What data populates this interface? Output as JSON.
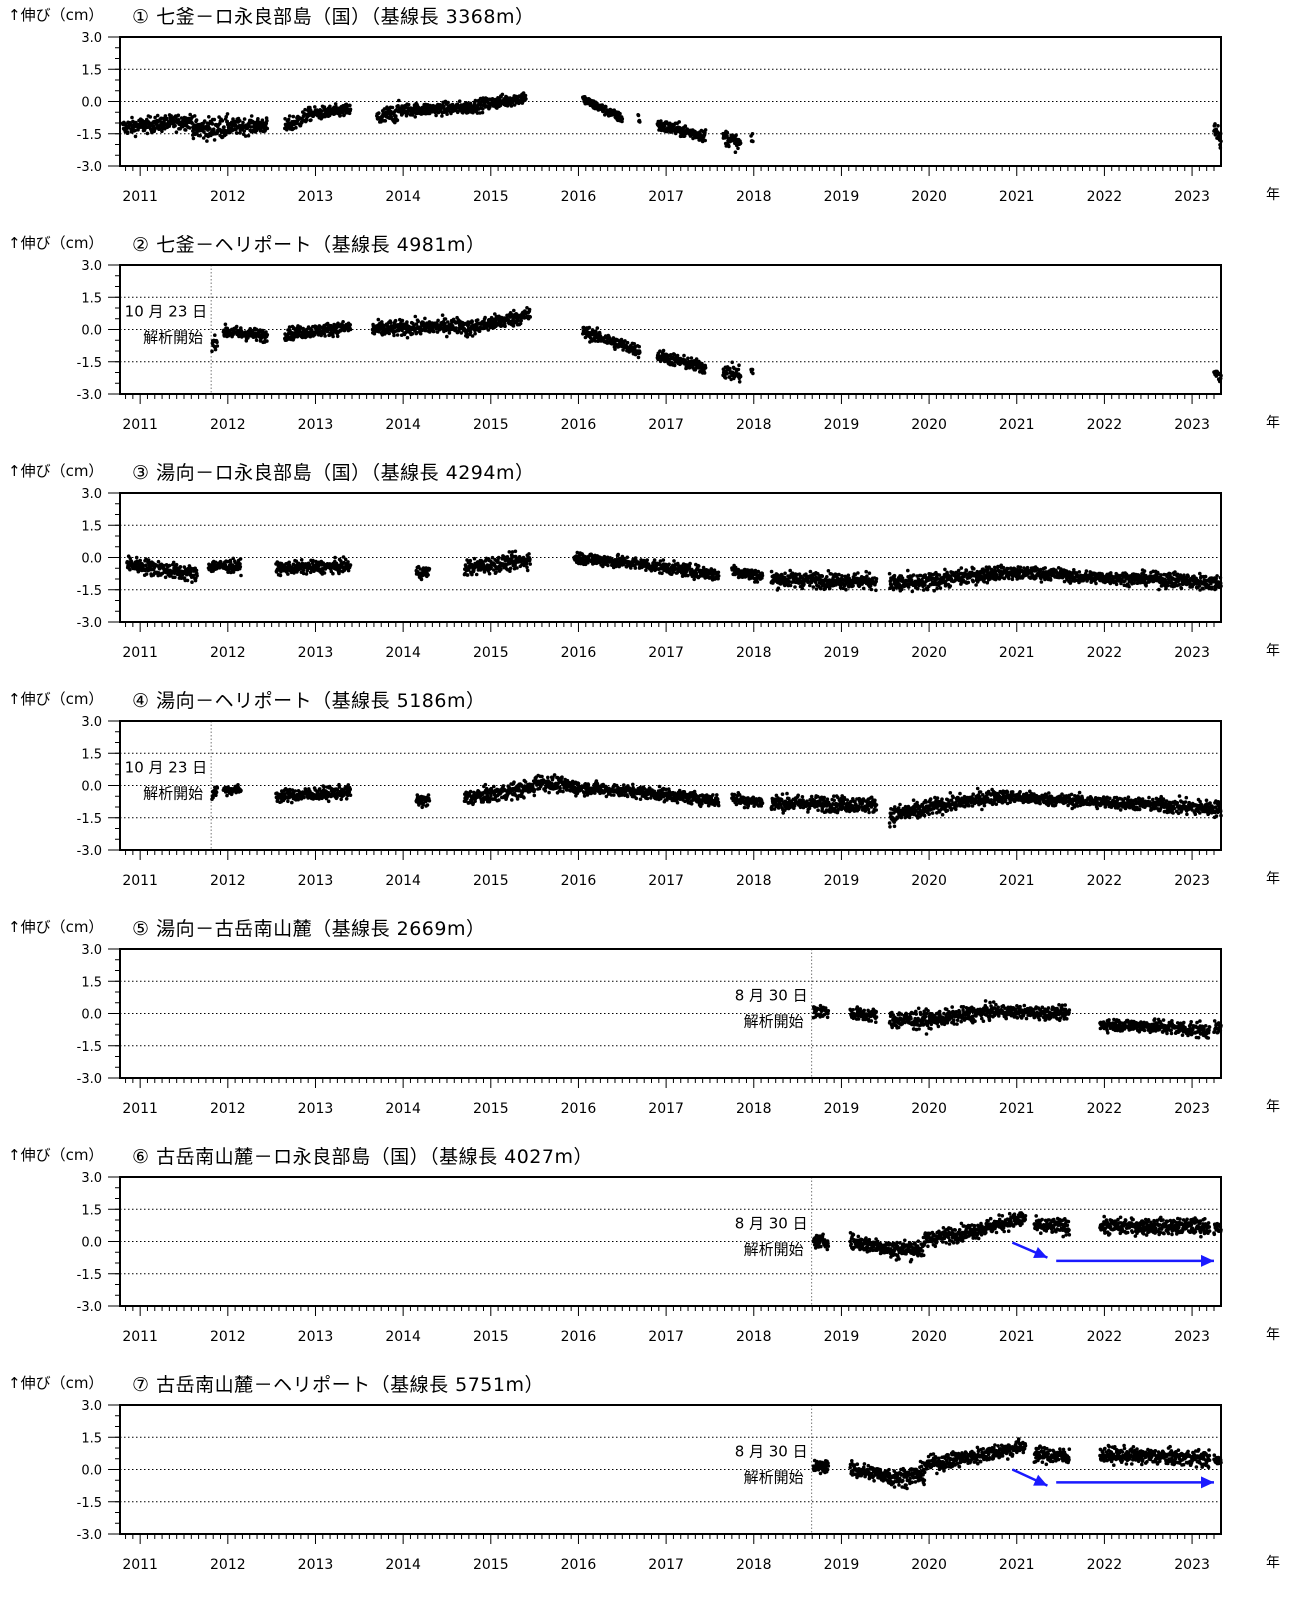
{
  "chart_data": [
    {
      "type": "scatter",
      "title": "① 七釜－ロ永良部島（国）（基線長 3368m）",
      "ylabel": "↑伸び（cm）",
      "year_unit": "年",
      "xlim": [
        2010.77,
        2023.33
      ],
      "ylim": [
        -3.0,
        3.0
      ],
      "yticks": [
        "3.0",
        "1.5",
        "0.0",
        "-1.5",
        "-3.0"
      ],
      "xticks": [
        "2011",
        "2012",
        "2013",
        "2014",
        "2015",
        "2016",
        "2017",
        "2018",
        "2019",
        "2020",
        "2021",
        "2022",
        "2023"
      ],
      "grid": "dotted horizontal",
      "series": [
        {
          "segments": [
            [
              2010.8,
              2011.6,
              -1.2,
              -0.9,
              0.25
            ],
            [
              2011.6,
              2012.0,
              -1.3,
              -1.2,
              0.35
            ],
            [
              2012.0,
              2012.45,
              -1.2,
              -1.1,
              0.25
            ],
            [
              2012.65,
              2012.9,
              -1.2,
              -0.7,
              0.25
            ],
            [
              2012.9,
              2013.4,
              -0.6,
              -0.4,
              0.2
            ],
            [
              2013.7,
              2013.95,
              -0.8,
              -0.5,
              0.3
            ],
            [
              2013.95,
              2014.7,
              -0.4,
              -0.3,
              0.2
            ],
            [
              2014.7,
              2015.4,
              -0.3,
              0.2,
              0.2
            ],
            [
              2016.05,
              2016.5,
              0.1,
              -0.8,
              0.15
            ],
            [
              2016.68,
              2016.7,
              -0.6,
              -1.0,
              0.2
            ],
            [
              2016.9,
              2017.45,
              -1.1,
              -1.6,
              0.2
            ],
            [
              2017.65,
              2017.85,
              -1.6,
              -2.0,
              0.25
            ],
            [
              2017.97,
              2017.99,
              -1.7,
              -2.0,
              0.2
            ],
            [
              2023.25,
              2023.33,
              -1.2,
              -1.8,
              0.3
            ]
          ]
        }
      ]
    },
    {
      "type": "scatter",
      "title": "② 七釜－ヘリポート（基線長 4981m）",
      "ylabel": "↑伸び（cm）",
      "year_unit": "年",
      "xlim": [
        2010.77,
        2023.33
      ],
      "ylim": [
        -3.0,
        3.0
      ],
      "yticks": [
        "3.0",
        "1.5",
        "0.0",
        "-1.5",
        "-3.0"
      ],
      "xticks": [
        "2011",
        "2012",
        "2013",
        "2014",
        "2015",
        "2016",
        "2017",
        "2018",
        "2019",
        "2020",
        "2021",
        "2022",
        "2023"
      ],
      "grid": "dotted horizontal",
      "start_marker": {
        "x": 2011.81,
        "label1": "10 月 23 日",
        "label2": "解析開始"
      },
      "series": [
        {
          "segments": [
            [
              2011.82,
              2011.88,
              -0.7,
              -0.5,
              0.2
            ],
            [
              2011.95,
              2012.45,
              -0.1,
              -0.3,
              0.2
            ],
            [
              2012.65,
              2013.4,
              -0.2,
              0.1,
              0.2
            ],
            [
              2013.65,
              2014.7,
              0.0,
              0.2,
              0.25
            ],
            [
              2014.7,
              2015.45,
              0.0,
              0.7,
              0.25
            ],
            [
              2016.05,
              2016.7,
              -0.1,
              -1.0,
              0.2
            ],
            [
              2016.9,
              2017.45,
              -1.2,
              -1.8,
              0.2
            ],
            [
              2017.65,
              2017.85,
              -1.9,
              -2.1,
              0.25
            ],
            [
              2017.97,
              2017.99,
              -1.8,
              -2.1,
              0.2
            ],
            [
              2023.25,
              2023.33,
              -2.0,
              -2.2,
              0.2
            ]
          ]
        }
      ]
    },
    {
      "type": "scatter",
      "title": "③ 湯向－ロ永良部島（国）（基線長 4294m）",
      "ylabel": "↑伸び（cm）",
      "year_unit": "年",
      "xlim": [
        2010.77,
        2023.33
      ],
      "ylim": [
        -3.0,
        3.0
      ],
      "yticks": [
        "3.0",
        "1.5",
        "0.0",
        "-1.5",
        "-3.0"
      ],
      "xticks": [
        "2011",
        "2012",
        "2013",
        "2014",
        "2015",
        "2016",
        "2017",
        "2018",
        "2019",
        "2020",
        "2021",
        "2022",
        "2023"
      ],
      "grid": "dotted horizontal",
      "series": [
        {
          "segments": [
            [
              2010.85,
              2011.65,
              -0.3,
              -0.8,
              0.25
            ],
            [
              2011.78,
              2012.15,
              -0.4,
              -0.4,
              0.2
            ],
            [
              2012.55,
              2013.4,
              -0.5,
              -0.4,
              0.2
            ],
            [
              2014.15,
              2014.3,
              -0.7,
              -0.7,
              0.2
            ],
            [
              2014.7,
              2015.45,
              -0.5,
              -0.1,
              0.25
            ],
            [
              2015.95,
              2016.7,
              0.0,
              -0.3,
              0.2
            ],
            [
              2016.7,
              2017.6,
              -0.3,
              -0.8,
              0.2
            ],
            [
              2017.75,
              2018.1,
              -0.6,
              -0.9,
              0.2
            ],
            [
              2018.2,
              2019.4,
              -1.0,
              -1.1,
              0.25
            ],
            [
              2019.55,
              2020.0,
              -1.2,
              -1.2,
              0.3
            ],
            [
              2020.0,
              2020.8,
              -1.1,
              -0.7,
              0.25
            ],
            [
              2020.8,
              2021.6,
              -0.7,
              -0.8,
              0.2
            ],
            [
              2021.6,
              2022.6,
              -0.9,
              -1.0,
              0.2
            ],
            [
              2022.6,
              2023.33,
              -1.0,
              -1.2,
              0.25
            ]
          ]
        }
      ]
    },
    {
      "type": "scatter",
      "title": "④ 湯向－ヘリポート（基線長 5186m）",
      "ylabel": "↑伸び（cm）",
      "year_unit": "年",
      "xlim": [
        2010.77,
        2023.33
      ],
      "ylim": [
        -3.0,
        3.0
      ],
      "yticks": [
        "3.0",
        "1.5",
        "0.0",
        "-1.5",
        "-3.0"
      ],
      "xticks": [
        "2011",
        "2012",
        "2013",
        "2014",
        "2015",
        "2016",
        "2017",
        "2018",
        "2019",
        "2020",
        "2021",
        "2022",
        "2023"
      ],
      "grid": "dotted horizontal",
      "start_marker": {
        "x": 2011.81,
        "label1": "10 月 23 日",
        "label2": "解析開始"
      },
      "series": [
        {
          "segments": [
            [
              2011.82,
              2011.88,
              -0.4,
              -0.2,
              0.2
            ],
            [
              2011.95,
              2012.15,
              -0.2,
              -0.2,
              0.15
            ],
            [
              2012.55,
              2013.4,
              -0.5,
              -0.3,
              0.2
            ],
            [
              2014.15,
              2014.3,
              -0.7,
              -0.7,
              0.2
            ],
            [
              2014.7,
              2015.5,
              -0.6,
              -0.1,
              0.25
            ],
            [
              2015.5,
              2016.0,
              0.2,
              -0.1,
              0.25
            ],
            [
              2016.0,
              2016.7,
              -0.1,
              -0.3,
              0.2
            ],
            [
              2016.7,
              2017.6,
              -0.3,
              -0.7,
              0.2
            ],
            [
              2017.75,
              2018.1,
              -0.6,
              -0.8,
              0.2
            ],
            [
              2018.2,
              2019.4,
              -0.8,
              -0.9,
              0.25
            ],
            [
              2019.55,
              2020.0,
              -1.4,
              -1.1,
              0.3
            ],
            [
              2020.0,
              2020.8,
              -1.0,
              -0.5,
              0.25
            ],
            [
              2020.8,
              2021.6,
              -0.5,
              -0.7,
              0.2
            ],
            [
              2021.6,
              2022.6,
              -0.7,
              -0.9,
              0.2
            ],
            [
              2022.6,
              2023.33,
              -0.9,
              -1.1,
              0.25
            ]
          ]
        }
      ]
    },
    {
      "type": "scatter",
      "title": "⑤ 湯向－古岳南山麓（基線長 2669m）",
      "ylabel": "↑伸び（cm）",
      "year_unit": "年",
      "xlim": [
        2010.77,
        2023.33
      ],
      "ylim": [
        -3.0,
        3.0
      ],
      "yticks": [
        "3.0",
        "1.5",
        "0.0",
        "-1.5",
        "-3.0"
      ],
      "xticks": [
        "2011",
        "2012",
        "2013",
        "2014",
        "2015",
        "2016",
        "2017",
        "2018",
        "2019",
        "2020",
        "2021",
        "2022",
        "2023"
      ],
      "grid": "dotted horizontal",
      "start_marker": {
        "x": 2018.66,
        "label1": "8 月 30 日",
        "label2": "解析開始"
      },
      "series": [
        {
          "segments": [
            [
              2018.68,
              2018.85,
              0.1,
              0.1,
              0.2
            ],
            [
              2019.1,
              2019.4,
              0.0,
              -0.1,
              0.2
            ],
            [
              2019.55,
              2020.0,
              -0.3,
              -0.3,
              0.3
            ],
            [
              2020.0,
              2020.7,
              -0.3,
              0.1,
              0.25
            ],
            [
              2020.7,
              2021.6,
              0.1,
              0.0,
              0.2
            ],
            [
              2021.95,
              2022.6,
              -0.5,
              -0.6,
              0.2
            ],
            [
              2022.6,
              2023.2,
              -0.6,
              -0.8,
              0.25
            ],
            [
              2023.25,
              2023.33,
              -0.7,
              -0.7,
              0.2
            ]
          ]
        }
      ]
    },
    {
      "type": "scatter",
      "title": "⑥ 古岳南山麓－ロ永良部島（国）（基線長 4027m）",
      "ylabel": "↑伸び（cm）",
      "year_unit": "年",
      "xlim": [
        2010.77,
        2023.33
      ],
      "ylim": [
        -3.0,
        3.0
      ],
      "yticks": [
        "3.0",
        "1.5",
        "0.0",
        "-1.5",
        "-3.0"
      ],
      "xticks": [
        "2011",
        "2012",
        "2013",
        "2014",
        "2015",
        "2016",
        "2017",
        "2018",
        "2019",
        "2020",
        "2021",
        "2022",
        "2023"
      ],
      "grid": "dotted horizontal",
      "start_marker": {
        "x": 2018.66,
        "label1": "8 月 30 日",
        "label2": "解析開始"
      },
      "arrows": [
        {
          "x1": 2020.95,
          "y1": -0.05,
          "x2": 2021.35,
          "y2": -0.75
        },
        {
          "x1": 2021.45,
          "y1": -0.9,
          "x2": 2023.25,
          "y2": -0.9
        }
      ],
      "series": [
        {
          "segments": [
            [
              2018.68,
              2018.85,
              0.0,
              0.0,
              0.2
            ],
            [
              2019.1,
              2019.55,
              0.0,
              -0.3,
              0.25
            ],
            [
              2019.55,
              2019.95,
              -0.4,
              -0.3,
              0.3
            ],
            [
              2019.95,
              2020.5,
              0.1,
              0.5,
              0.25
            ],
            [
              2020.5,
              2021.1,
              0.5,
              1.1,
              0.25
            ],
            [
              2021.2,
              2021.6,
              0.7,
              0.7,
              0.25
            ],
            [
              2021.95,
              2023.2,
              0.7,
              0.7,
              0.25
            ],
            [
              2023.25,
              2023.33,
              0.6,
              0.6,
              0.2
            ]
          ]
        }
      ]
    },
    {
      "type": "scatter",
      "title": "⑦ 古岳南山麓－ヘリポート（基線長 5751m）",
      "ylabel": "↑伸び（cm）",
      "year_unit": "年",
      "xlim": [
        2010.77,
        2023.33
      ],
      "ylim": [
        -3.0,
        3.0
      ],
      "yticks": [
        "3.0",
        "1.5",
        "0.0",
        "-1.5",
        "-3.0"
      ],
      "xticks": [
        "2011",
        "2012",
        "2013",
        "2014",
        "2015",
        "2016",
        "2017",
        "2018",
        "2019",
        "2020",
        "2021",
        "2022",
        "2023"
      ],
      "grid": "dotted horizontal",
      "start_marker": {
        "x": 2018.66,
        "label1": "8 月 30 日",
        "label2": "解析開始"
      },
      "arrows": [
        {
          "x1": 2020.95,
          "y1": 0.0,
          "x2": 2021.35,
          "y2": -0.75
        },
        {
          "x1": 2021.45,
          "y1": -0.6,
          "x2": 2023.25,
          "y2": -0.6
        }
      ],
      "series": [
        {
          "segments": [
            [
              2018.68,
              2018.85,
              0.1,
              0.2,
              0.2
            ],
            [
              2019.1,
              2019.55,
              0.0,
              -0.3,
              0.25
            ],
            [
              2019.55,
              2019.95,
              -0.4,
              -0.2,
              0.3
            ],
            [
              2019.95,
              2020.5,
              0.2,
              0.6,
              0.25
            ],
            [
              2020.5,
              2021.1,
              0.6,
              1.1,
              0.25
            ],
            [
              2021.2,
              2021.6,
              0.7,
              0.6,
              0.25
            ],
            [
              2021.95,
              2023.2,
              0.7,
              0.5,
              0.25
            ],
            [
              2023.25,
              2023.33,
              0.4,
              0.4,
              0.2
            ]
          ]
        }
      ]
    }
  ]
}
